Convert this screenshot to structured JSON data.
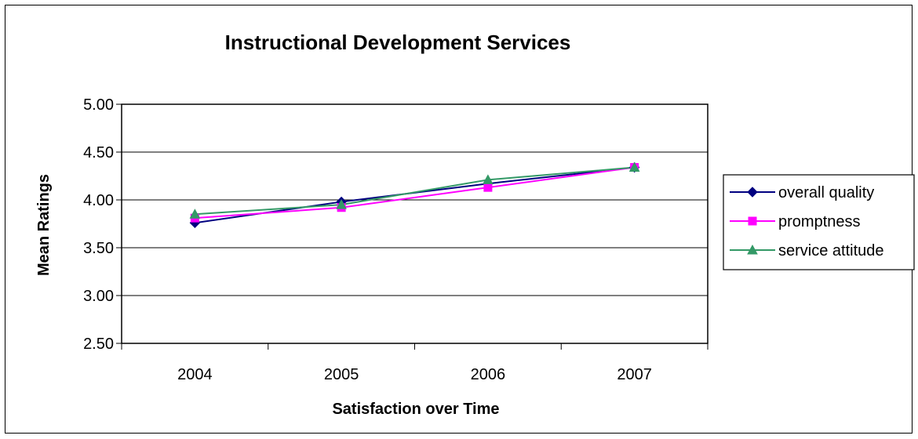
{
  "chart_data": {
    "type": "line",
    "title": "Instructional Development Services",
    "xlabel": "Satisfaction over Time",
    "ylabel": "Mean Ratings",
    "categories": [
      "2004",
      "2005",
      "2006",
      "2007"
    ],
    "ylim": [
      2.5,
      5.0
    ],
    "yticks": [
      "2.50",
      "3.00",
      "3.50",
      "4.00",
      "4.50",
      "5.00"
    ],
    "grid": true,
    "legend_position": "right",
    "series": [
      {
        "name": "overall quality",
        "values": [
          3.76,
          3.98,
          4.17,
          4.34
        ],
        "color": "#000080",
        "marker": "diamond"
      },
      {
        "name": "promptness",
        "values": [
          3.81,
          3.92,
          4.13,
          4.34
        ],
        "color": "#FF00FF",
        "marker": "square"
      },
      {
        "name": "service attitude",
        "values": [
          3.85,
          3.95,
          4.21,
          4.34
        ],
        "color": "#339966",
        "marker": "triangle"
      }
    ]
  }
}
